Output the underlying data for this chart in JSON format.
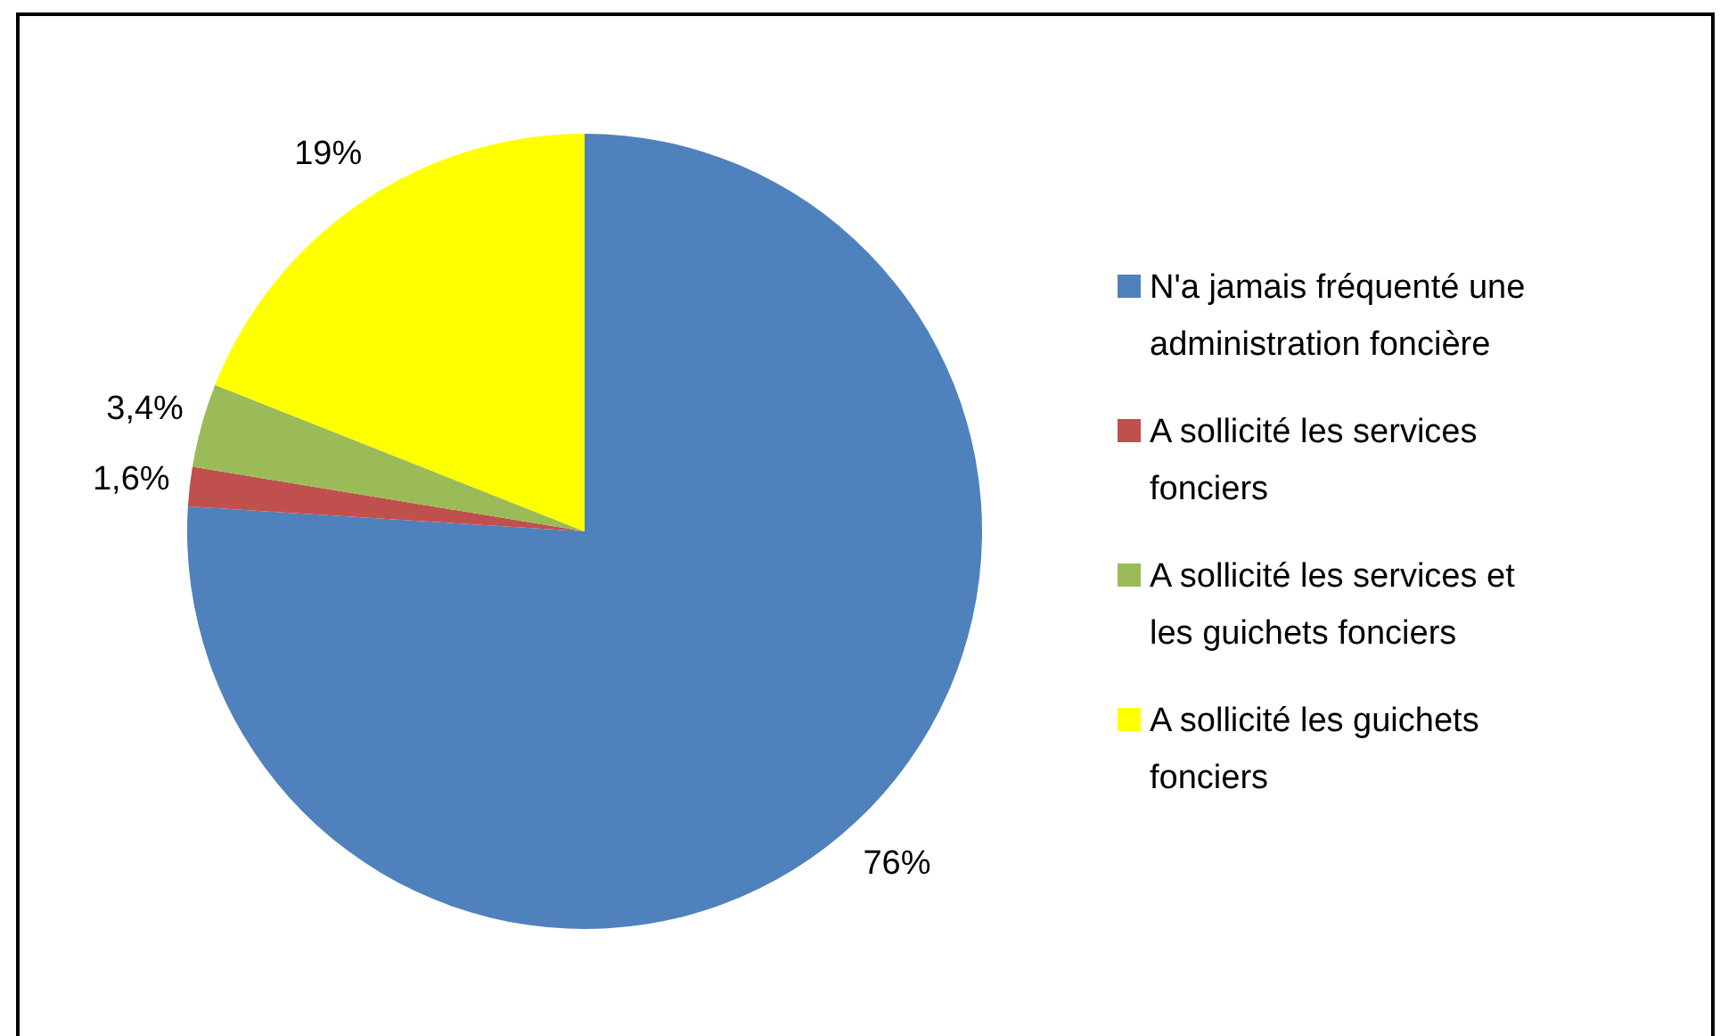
{
  "chart_data": {
    "type": "pie",
    "categories": [
      "N'a jamais fréquenté une administration foncière",
      "A sollicité les services fonciers",
      "A sollicité les services et les guichets fonciers",
      "A sollicité les guichets fonciers"
    ],
    "values": [
      76,
      1.6,
      3.4,
      19
    ],
    "value_labels": [
      "76%",
      "1,6%",
      "3,4%",
      "19%"
    ],
    "colors": [
      "#4f81bd",
      "#c0504d",
      "#9bbb59",
      "#ffff00"
    ],
    "legend": "right"
  }
}
